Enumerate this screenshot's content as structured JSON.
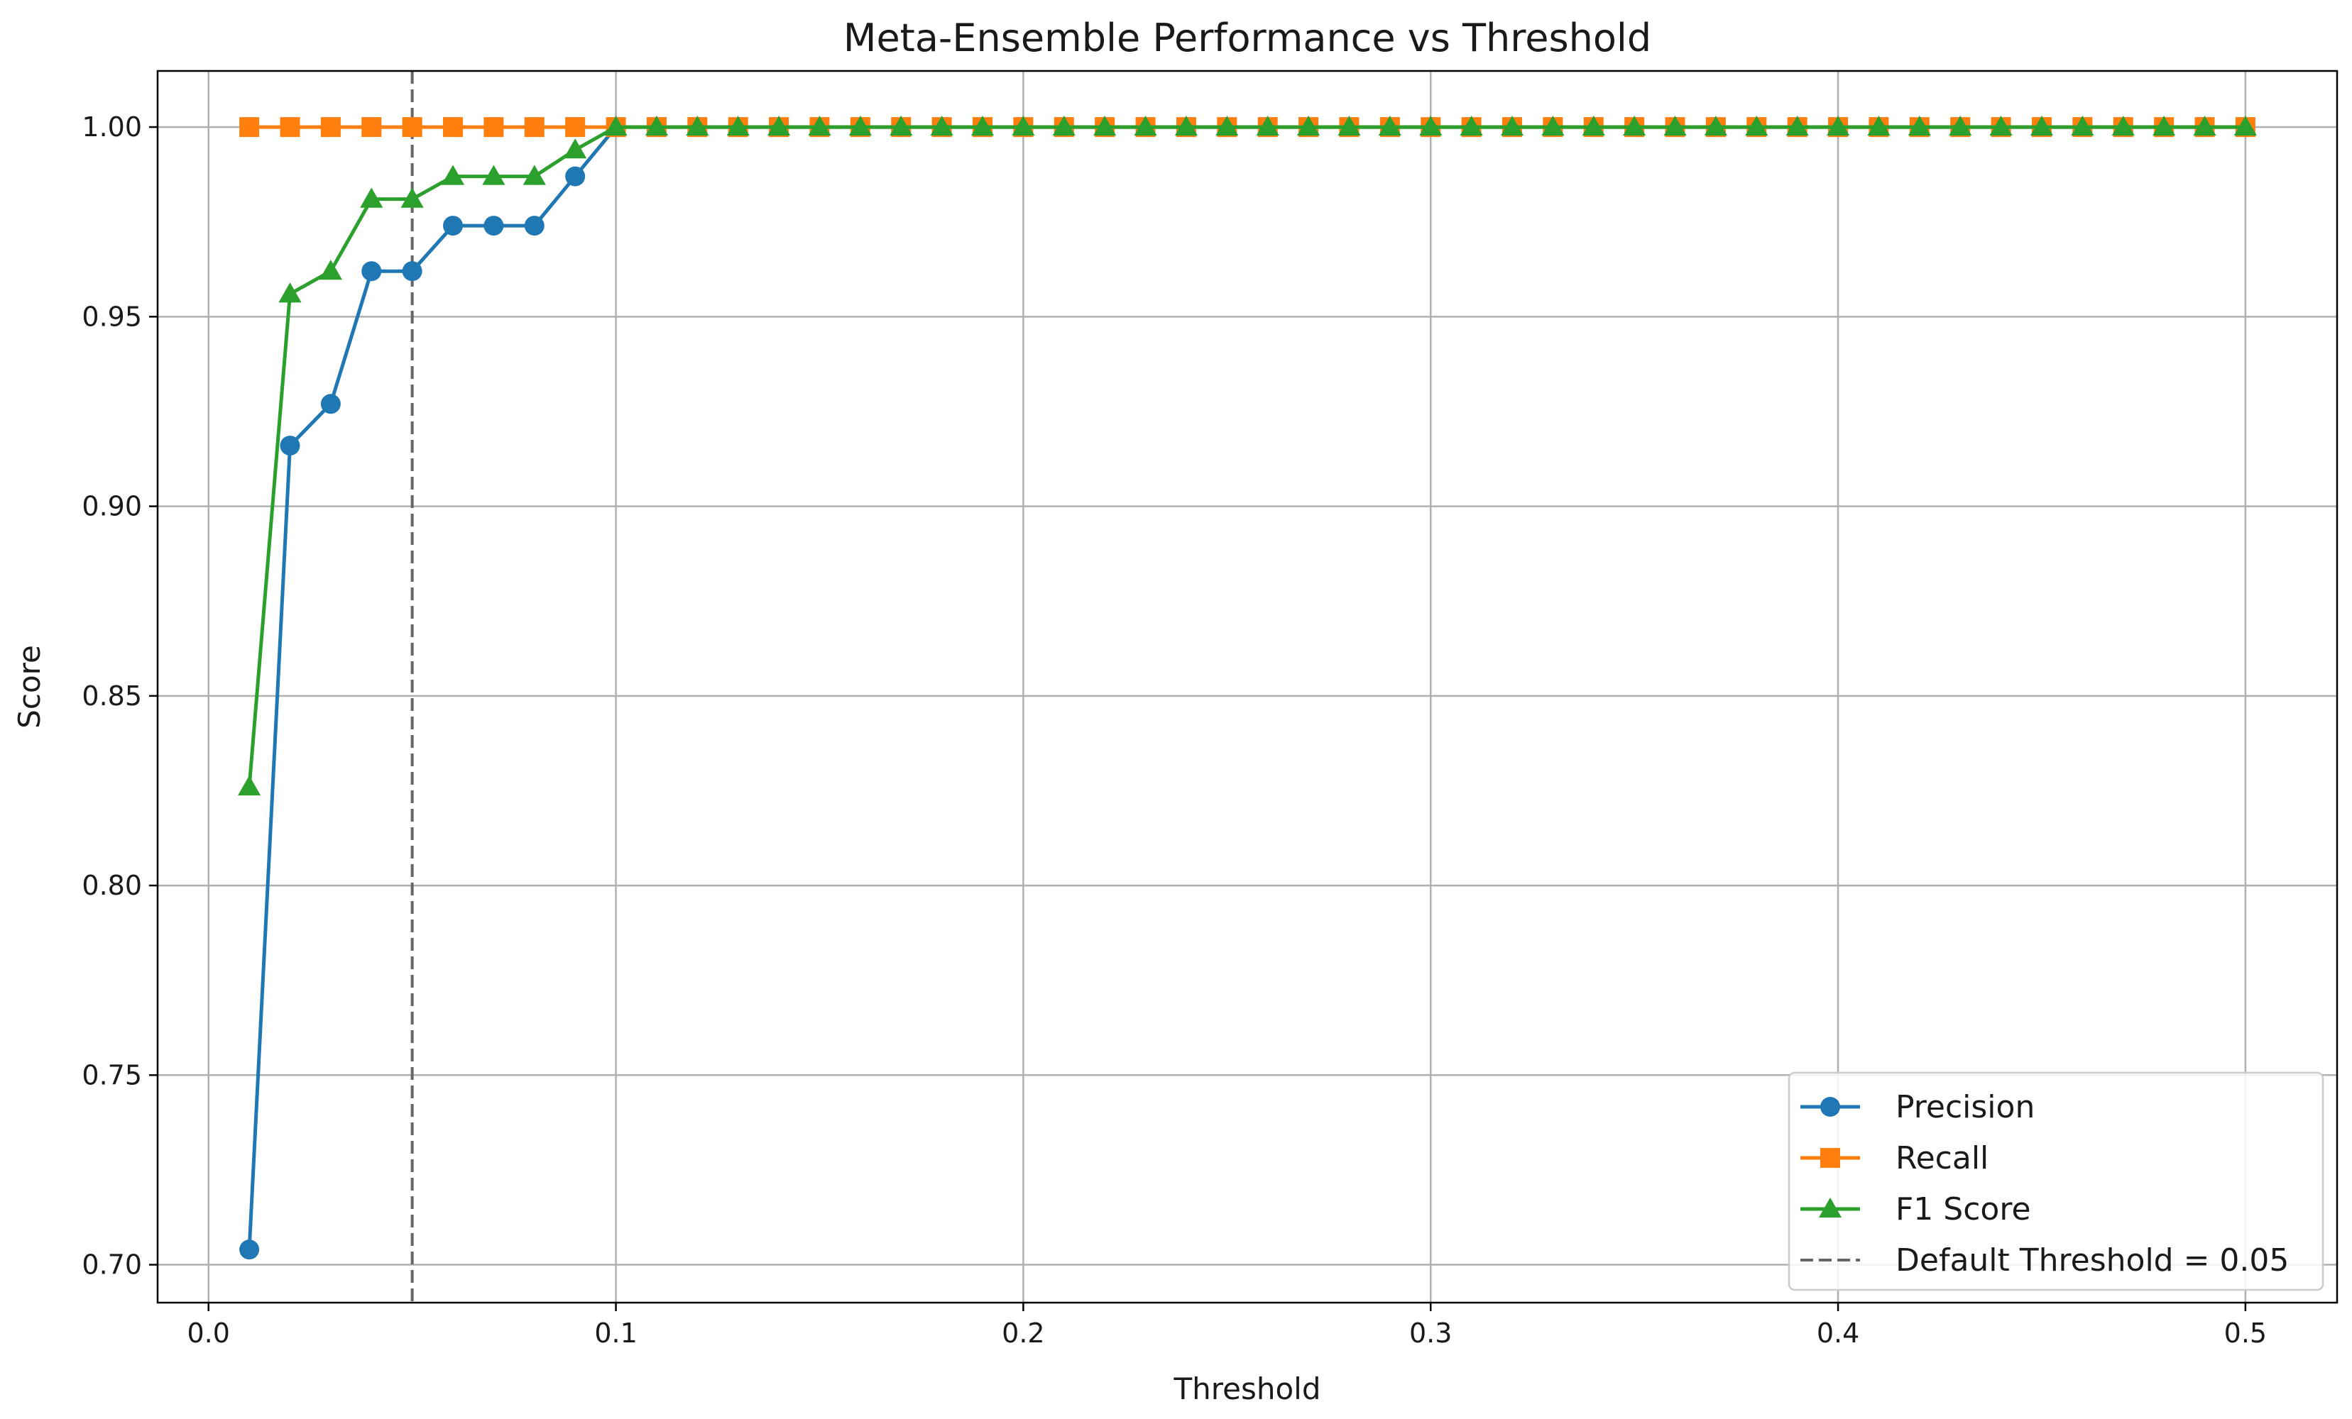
{
  "chart_data": {
    "type": "line",
    "title": "Meta-Ensemble Performance vs Threshold",
    "xlabel": "Threshold",
    "ylabel": "Score",
    "xlim": [
      -0.0125,
      0.5225
    ],
    "ylim": [
      0.69,
      1.0148
    ],
    "xticks": [
      0.0,
      0.1,
      0.2,
      0.3,
      0.4,
      0.5
    ],
    "xtick_labels": [
      "0.0",
      "0.1",
      "0.2",
      "0.3",
      "0.4",
      "0.5"
    ],
    "yticks": [
      0.7,
      0.75,
      0.8,
      0.85,
      0.9,
      0.95,
      1.0
    ],
    "ytick_labels": [
      "0.70",
      "0.75",
      "0.80",
      "0.85",
      "0.90",
      "0.95",
      "1.00"
    ],
    "grid": true,
    "legend_position": "lower-right",
    "x": [
      0.01,
      0.02,
      0.03,
      0.04,
      0.05,
      0.06,
      0.07,
      0.08,
      0.09,
      0.1,
      0.11,
      0.12,
      0.13,
      0.14,
      0.15,
      0.16,
      0.17,
      0.18,
      0.19,
      0.2,
      0.21,
      0.22,
      0.23,
      0.24,
      0.25,
      0.26,
      0.27,
      0.28,
      0.29,
      0.3,
      0.31,
      0.32,
      0.33,
      0.34,
      0.35,
      0.36,
      0.37,
      0.38,
      0.39,
      0.4,
      0.41,
      0.42,
      0.43,
      0.44,
      0.45,
      0.46,
      0.47,
      0.48,
      0.49,
      0.5
    ],
    "series": [
      {
        "name": "Precision",
        "color": "#1f77b4",
        "marker": "circle",
        "values": [
          0.704,
          0.916,
          0.927,
          0.962,
          0.962,
          0.974,
          0.974,
          0.974,
          0.987,
          1.0,
          1.0,
          1.0,
          1.0,
          1.0,
          1.0,
          1.0,
          1.0,
          1.0,
          1.0,
          1.0,
          1.0,
          1.0,
          1.0,
          1.0,
          1.0,
          1.0,
          1.0,
          1.0,
          1.0,
          1.0,
          1.0,
          1.0,
          1.0,
          1.0,
          1.0,
          1.0,
          1.0,
          1.0,
          1.0,
          1.0,
          1.0,
          1.0,
          1.0,
          1.0,
          1.0,
          1.0,
          1.0,
          1.0,
          1.0,
          1.0
        ]
      },
      {
        "name": "Recall",
        "color": "#ff7f0e",
        "marker": "square",
        "values": [
          1.0,
          1.0,
          1.0,
          1.0,
          1.0,
          1.0,
          1.0,
          1.0,
          1.0,
          1.0,
          1.0,
          1.0,
          1.0,
          1.0,
          1.0,
          1.0,
          1.0,
          1.0,
          1.0,
          1.0,
          1.0,
          1.0,
          1.0,
          1.0,
          1.0,
          1.0,
          1.0,
          1.0,
          1.0,
          1.0,
          1.0,
          1.0,
          1.0,
          1.0,
          1.0,
          1.0,
          1.0,
          1.0,
          1.0,
          1.0,
          1.0,
          1.0,
          1.0,
          1.0,
          1.0,
          1.0,
          1.0,
          1.0,
          1.0,
          1.0
        ]
      },
      {
        "name": "F1 Score",
        "color": "#2ca02c",
        "marker": "triangle",
        "values": [
          0.826,
          0.956,
          0.962,
          0.981,
          0.981,
          0.987,
          0.987,
          0.987,
          0.994,
          1.0,
          1.0,
          1.0,
          1.0,
          1.0,
          1.0,
          1.0,
          1.0,
          1.0,
          1.0,
          1.0,
          1.0,
          1.0,
          1.0,
          1.0,
          1.0,
          1.0,
          1.0,
          1.0,
          1.0,
          1.0,
          1.0,
          1.0,
          1.0,
          1.0,
          1.0,
          1.0,
          1.0,
          1.0,
          1.0,
          1.0,
          1.0,
          1.0,
          1.0,
          1.0,
          1.0,
          1.0,
          1.0,
          1.0,
          1.0,
          1.0
        ]
      }
    ],
    "reference_lines": [
      {
        "name": "Default Threshold = 0.05",
        "axis": "x",
        "value": 0.05,
        "color": "#666666",
        "style": "dashed"
      }
    ]
  }
}
